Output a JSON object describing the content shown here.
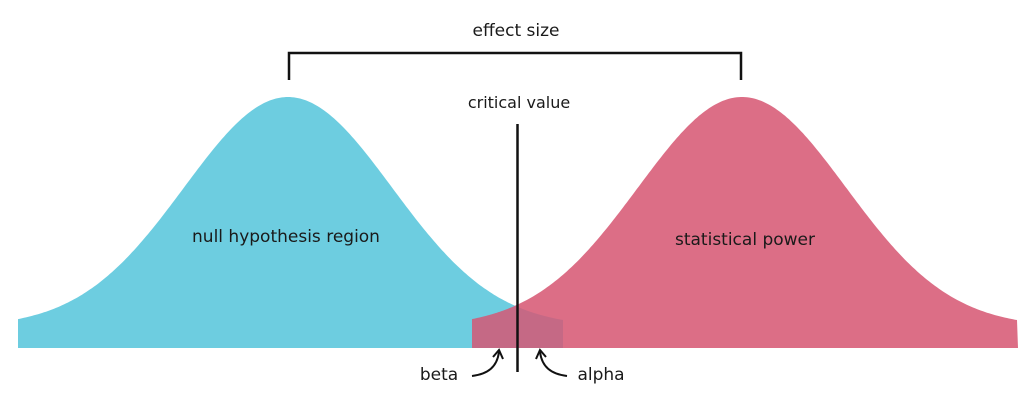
{
  "labels": {
    "effect_size": "effect size",
    "critical_value": "critical value",
    "null_region": "null hypothesis region",
    "statistical_power": "statistical power",
    "beta": "beta",
    "alpha": "alpha"
  },
  "colors": {
    "null_distribution": "#6dcde0",
    "alternative_distribution": "#dc6e86",
    "overlap": "#c56985",
    "line": "#111111",
    "text": "#1a1a1a"
  }
}
